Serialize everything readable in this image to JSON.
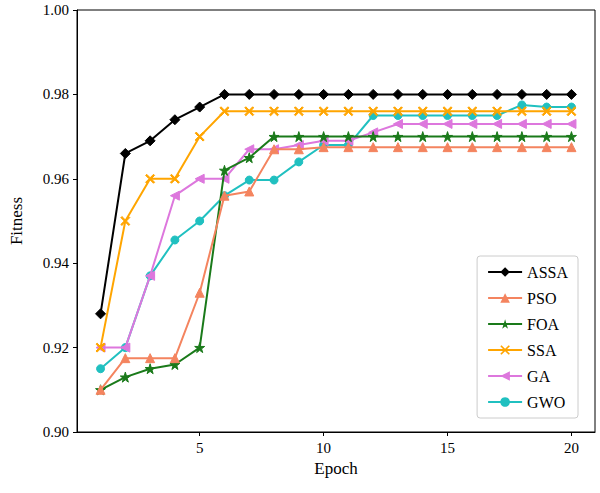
{
  "chart_data": {
    "type": "line",
    "x_label": "Epoch",
    "y_label": "Fitness",
    "x": [
      1,
      2,
      3,
      4,
      5,
      6,
      7,
      8,
      9,
      10,
      11,
      12,
      13,
      14,
      15,
      16,
      17,
      18,
      19,
      20
    ],
    "xlim": [
      0.05,
      20.95
    ],
    "xticks": [
      5,
      10,
      15,
      20
    ],
    "ylim": [
      0.9,
      1.0
    ],
    "yticks": [
      {
        "value": 0.9,
        "label": "0.90"
      },
      0.92,
      0.94,
      0.96,
      0.98,
      {
        "value": 1.0,
        "label": "1.00"
      }
    ],
    "grid": false,
    "legend": "lower right",
    "series": [
      {
        "name": "ASSA",
        "color": "#000000",
        "marker": "diamond",
        "values": [
          0.928,
          0.966,
          0.969,
          0.974,
          0.977,
          0.98,
          0.98,
          0.98,
          0.98,
          0.98,
          0.98,
          0.98,
          0.98,
          0.98,
          0.98,
          0.98,
          0.98,
          0.98,
          0.98,
          0.98
        ]
      },
      {
        "name": "PSO",
        "color": "#f4845f",
        "marker": "triangle",
        "values": [
          0.91,
          0.9175,
          0.9175,
          0.9175,
          0.933,
          0.956,
          0.957,
          0.967,
          0.967,
          0.9675,
          0.9675,
          0.9675,
          0.9675,
          0.9675,
          0.9675,
          0.9675,
          0.9675,
          0.9675,
          0.9675,
          0.9675
        ]
      },
      {
        "name": "FOA",
        "color": "#1a7a1a",
        "marker": "star",
        "values": [
          0.91,
          0.913,
          0.915,
          0.916,
          0.92,
          0.962,
          0.965,
          0.97,
          0.97,
          0.97,
          0.97,
          0.97,
          0.97,
          0.97,
          0.97,
          0.97,
          0.97,
          0.97,
          0.97,
          0.97
        ]
      },
      {
        "name": "SSA",
        "color": "#ffa500",
        "marker": "x",
        "values": [
          0.92,
          0.95,
          0.96,
          0.96,
          0.97,
          0.976,
          0.976,
          0.976,
          0.976,
          0.976,
          0.976,
          0.976,
          0.976,
          0.976,
          0.976,
          0.976,
          0.976,
          0.976,
          0.976,
          0.976
        ]
      },
      {
        "name": "GA",
        "color": "#dd77dd",
        "marker": "triangle_left",
        "values": [
          0.92,
          0.92,
          0.937,
          0.956,
          0.96,
          0.96,
          0.967,
          0.967,
          0.968,
          0.969,
          0.969,
          0.971,
          0.973,
          0.973,
          0.973,
          0.973,
          0.973,
          0.973,
          0.973,
          0.973
        ]
      },
      {
        "name": "GWO",
        "color": "#20c0c0",
        "marker": "circle",
        "values": [
          0.915,
          0.92,
          0.937,
          0.9455,
          0.95,
          0.956,
          0.9597,
          0.9597,
          0.964,
          0.968,
          0.968,
          0.975,
          0.975,
          0.975,
          0.975,
          0.975,
          0.975,
          0.9775,
          0.977,
          0.977
        ]
      }
    ]
  }
}
